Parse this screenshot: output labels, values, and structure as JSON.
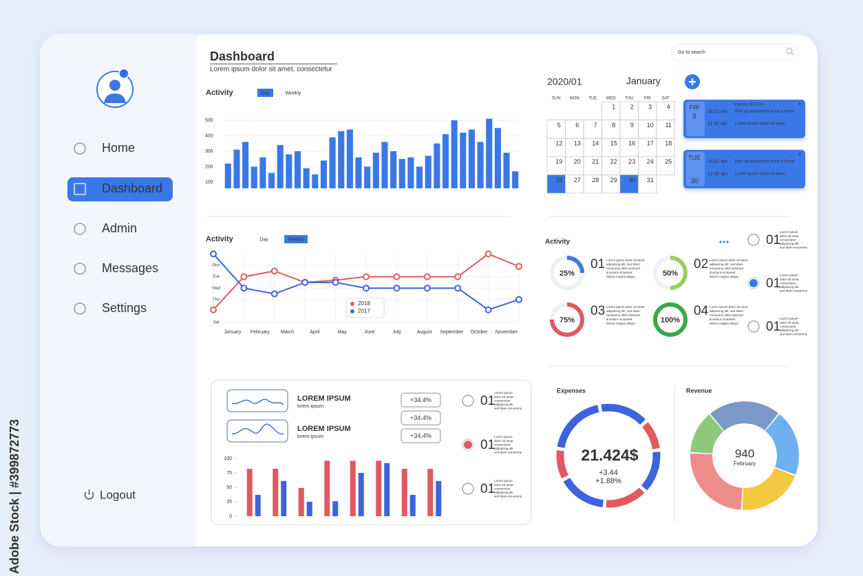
{
  "watermark": "Adobe Stock | #399872773",
  "sidebar": {
    "badge": 2,
    "nav": [
      {
        "label": "Home",
        "active": false
      },
      {
        "label": "Dashboard",
        "active": true
      },
      {
        "label": "Admin",
        "active": false
      },
      {
        "label": "Messages",
        "active": false
      },
      {
        "label": "Settings",
        "active": false
      }
    ],
    "logout": "Logout"
  },
  "header": {
    "title": "Dashboard",
    "subtitle": "Lorem ipsum dolor sit amet, consectetur",
    "search_placeholder": "Go to search"
  },
  "activity_bars": {
    "type": "bar",
    "title": "Activity",
    "tabs": [
      {
        "label": "Day",
        "active": true
      },
      {
        "label": "Weekly",
        "active": false
      }
    ],
    "color": "#3b78e7",
    "ylim": [
      60,
      540
    ],
    "yticks": [
      100,
      200,
      300,
      400,
      500
    ],
    "values": [
      220,
      310,
      360,
      200,
      260,
      160,
      340,
      280,
      300,
      190,
      150,
      240,
      390,
      430,
      440,
      260,
      200,
      290,
      360,
      300,
      250,
      260,
      200,
      270,
      350,
      410,
      500,
      420,
      440,
      360,
      510,
      450,
      290,
      170
    ]
  },
  "activity_lines": {
    "type": "line",
    "title": "Activity",
    "tabs": [
      {
        "label": "Day",
        "active": false
      },
      {
        "label": "Weekly",
        "active": true
      }
    ],
    "categories": [
      "January",
      "February",
      "March",
      "April",
      "May",
      "June",
      "July",
      "August",
      "September",
      "October",
      "November"
    ],
    "ylim": [
      0,
      6
    ],
    "yticks": [
      {
        "value": 5,
        "label": "Mon"
      },
      {
        "value": 4,
        "label": "Tue"
      },
      {
        "value": 3,
        "label": "Wed"
      },
      {
        "value": 2,
        "label": "Thu"
      },
      {
        "value": 0,
        "label": "Sat"
      }
    ],
    "grid": true,
    "series": [
      {
        "name": "2018",
        "color": "#e05a5f",
        "values": [
          1.1,
          4,
          4.5,
          3.5,
          3.7,
          4,
          4,
          4,
          4,
          6,
          4.9
        ]
      },
      {
        "name": "2017",
        "color": "#3d63dd",
        "values": [
          6,
          3,
          2.5,
          3.5,
          3.5,
          3,
          3,
          3,
          3,
          1.1,
          2
        ]
      }
    ]
  },
  "calendar": {
    "year_month": "2020/01",
    "month": "January",
    "weekdays": [
      "SUN",
      "MON",
      "TUE",
      "WED",
      "THU",
      "FRI",
      "SAT"
    ],
    "weeks": [
      [
        null,
        null,
        null,
        1,
        2,
        3,
        4
      ],
      [
        5,
        6,
        7,
        8,
        9,
        10,
        11
      ],
      [
        12,
        13,
        14,
        15,
        16,
        17,
        18
      ],
      [
        19,
        20,
        21,
        22,
        23,
        24,
        25
      ],
      [
        26,
        27,
        28,
        29,
        30,
        31,
        null
      ]
    ],
    "selected": [
      26,
      30
    ]
  },
  "events": [
    {
      "day": "FRI",
      "date": 9,
      "header": "Yesterday 08:22 PM",
      "items": [
        {
          "time": "16:21 am",
          "text": "Pick up documents from a friend"
        },
        {
          "time": "11:40 am",
          "text": "Lorem ipsum dolor sit amet"
        }
      ]
    },
    {
      "day": "TUE",
      "date": 30,
      "items": [
        {
          "time": "18:01 am",
          "text": "Pick up documents from a friend"
        },
        {
          "time": "12:30 am",
          "text": "Lorem ipsum dolor sit amet"
        }
      ]
    }
  ],
  "progress": {
    "type": "ring",
    "title": "Activity",
    "values": [
      25,
      50,
      75,
      100
    ],
    "value_labels": [
      "25%",
      "50%",
      "75%",
      "100%"
    ],
    "colors": [
      "#3b78e7",
      "#9ccf5a",
      "#e05a5f",
      "#3aa84a"
    ],
    "numbers": [
      "01",
      "02",
      "03",
      "04"
    ],
    "lines": [
      "Lorem ipsum dolor sit amet,",
      "adipiscing elit, sed diam",
      "nonummy nibh euismod",
      "tincidunt ut laoreet",
      "dolore magna aliqua"
    ]
  },
  "radio_top": {
    "items": [
      {
        "number": "01",
        "selected": false
      },
      {
        "number": "01",
        "selected": true
      },
      {
        "number": "01",
        "selected": false
      }
    ],
    "color": "#3b78e7",
    "lines": [
      "Lorem ipsum",
      "dolor sit amet,",
      "consectetur",
      "adipiscing elit",
      "sed diam nonummy"
    ]
  },
  "trends": {
    "items": [
      {
        "title": "LOREM IPSUM",
        "subtitle": "lorem ipsum"
      },
      {
        "title": "LOREM IPSUM",
        "subtitle": "lorem ipsum"
      }
    ],
    "badges": [
      {
        "label": "+34.4%",
        "color": "#e05a5f"
      },
      {
        "label": "+34.4%",
        "color": "#777777"
      },
      {
        "label": "+34.4%",
        "color": "#e05a5f"
      }
    ]
  },
  "grouped_bars": {
    "type": "bar",
    "ylim": [
      0,
      100
    ],
    "yticks": [
      0,
      25,
      50,
      75,
      100
    ],
    "categories": [
      null,
      null,
      null,
      null,
      null,
      null,
      null,
      null
    ],
    "series": [
      {
        "color": "#e05a5f",
        "values": [
          82,
          82,
          49,
          96,
          96,
          96,
          82,
          82
        ]
      },
      {
        "color": "#3d63dd",
        "values": [
          37,
          61,
          25,
          26,
          75,
          92,
          37,
          61
        ]
      }
    ]
  },
  "radio_bottom": {
    "items": [
      {
        "number": "01",
        "selected": false
      },
      {
        "number": "01",
        "selected": true
      },
      {
        "number": "01",
        "selected": false
      }
    ],
    "color": "#e05a5f",
    "lines": [
      "Lorem ipsum",
      "dolor sit amet,",
      "consectetur",
      "adipiscing elit",
      "sed diam nonummy"
    ]
  },
  "expenses": {
    "type": "donut",
    "title": "Expenses",
    "center": "21.424$",
    "lines": [
      "+3.44",
      "+1.88%"
    ],
    "values": [
      16,
      10,
      14,
      14,
      16,
      10,
      20
    ],
    "colors": [
      "#3d63dd",
      "#e05a5f",
      "#3d63dd",
      "#e05a5f",
      "#3d63dd",
      "#e05a5f",
      "#3d63dd"
    ]
  },
  "revenue": {
    "type": "donut",
    "title": "Revenue",
    "center": "940",
    "subtitle": "February",
    "values": [
      22,
      20,
      20,
      25,
      13
    ],
    "colors": [
      "#7b98c7",
      "#6fb0f3",
      "#f5c842",
      "#ee8c8c",
      "#8cc97a"
    ]
  }
}
